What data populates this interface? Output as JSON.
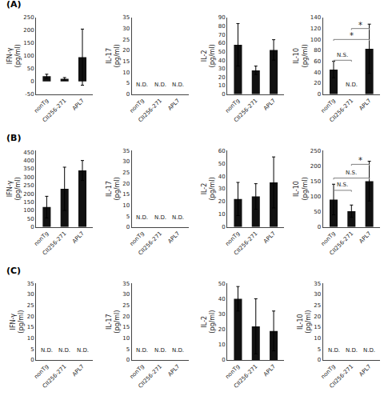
{
  "chart_data": [
    {
      "type": "bar",
      "title": "(A)",
      "ylabel": "IFN-γ\n(pg/ml)",
      "categories": [
        "nonTg",
        "CII256-271",
        "APL7"
      ],
      "values": [
        20,
        10,
        95
      ],
      "errors": [
        8,
        5,
        110
      ],
      "color": "#111111",
      "ylim": [
        -50,
        250
      ],
      "yticks": [
        -50,
        0,
        50,
        100,
        150,
        200,
        250
      ],
      "grid": false
    },
    {
      "type": "bar",
      "ylabel": "IL-17\n(pg/ml)",
      "categories": [
        "nonTg",
        "CII256-271",
        "APL7"
      ],
      "values": [
        null,
        null,
        null
      ],
      "errors": [
        null,
        null,
        null
      ],
      "color": "#111111",
      "ylim": [
        0,
        35
      ],
      "yticks": [
        0,
        5,
        10,
        15,
        20,
        25,
        30,
        35
      ],
      "grid": false,
      "annotations": [
        {
          "category": "nonTg",
          "text": "N.D."
        },
        {
          "category": "CII256-271",
          "text": "N.D."
        },
        {
          "category": "APL7",
          "text": "N.D."
        }
      ]
    },
    {
      "type": "bar",
      "ylabel": "IL-2\n(pg/ml)",
      "categories": [
        "nonTg",
        "CII256-271",
        "APL7"
      ],
      "values": [
        58,
        28,
        52
      ],
      "errors": [
        25,
        5,
        12
      ],
      "color": "#111111",
      "ylim": [
        0,
        90
      ],
      "yticks": [
        0,
        10,
        20,
        30,
        40,
        50,
        60,
        70,
        80,
        90
      ],
      "grid": false
    },
    {
      "type": "bar",
      "ylabel": "IL-10\n(pg/ml)",
      "categories": [
        "nonTg",
        "CII256-271",
        "APL7"
      ],
      "values": [
        45,
        null,
        83
      ],
      "errors": [
        15,
        null,
        45
      ],
      "color": "#111111",
      "ylim": [
        0,
        140
      ],
      "yticks": [
        0,
        20,
        40,
        60,
        80,
        100,
        120,
        140
      ],
      "grid": false,
      "annotations": [
        {
          "category": "CII256-271",
          "text": "N.D."
        }
      ],
      "significance": [
        {
          "from": "nonTg",
          "to": "CII256-271",
          "y": 62,
          "label": "N.S."
        },
        {
          "from": "nonTg",
          "to": "APL7",
          "y": 100,
          "label": "*"
        },
        {
          "from": "CII256-271",
          "to": "APL7",
          "y": 120,
          "label": "*"
        }
      ]
    },
    {
      "type": "bar",
      "title": "(B)",
      "ylabel": "IFN-γ\n(pg/ml)",
      "categories": [
        "nonTg",
        "CII256-271",
        "APL7"
      ],
      "values": [
        120,
        230,
        340
      ],
      "errors": [
        65,
        130,
        60
      ],
      "color": "#111111",
      "ylim": [
        0,
        460
      ],
      "yticks": [
        0,
        50,
        100,
        150,
        200,
        250,
        300,
        350,
        400,
        450
      ],
      "grid": false
    },
    {
      "type": "bar",
      "ylabel": "IL-17\n(pg/ml)",
      "categories": [
        "nonTg",
        "CII256-271",
        "APL7"
      ],
      "values": [
        null,
        null,
        null
      ],
      "errors": [
        null,
        null,
        null
      ],
      "color": "#111111",
      "ylim": [
        0,
        35
      ],
      "yticks": [
        0,
        5,
        10,
        15,
        20,
        25,
        30,
        35
      ],
      "grid": false,
      "annotations": [
        {
          "category": "nonTg",
          "text": "N.D."
        },
        {
          "category": "CII256-271",
          "text": "N.D."
        },
        {
          "category": "APL7",
          "text": "N.D."
        }
      ]
    },
    {
      "type": "bar",
      "ylabel": "IL-2\n(pg/ml)",
      "categories": [
        "nonTg",
        "CII256-271",
        "APL7"
      ],
      "values": [
        22,
        24,
        35
      ],
      "errors": [
        13,
        10,
        20
      ],
      "color": "#111111",
      "ylim": [
        0,
        60
      ],
      "yticks": [
        0,
        10,
        20,
        30,
        40,
        50,
        60
      ],
      "grid": false
    },
    {
      "type": "bar",
      "ylabel": "IL-10\n(pg/ml)",
      "categories": [
        "nonTg",
        "CII256-271",
        "APL7"
      ],
      "values": [
        90,
        52,
        150
      ],
      "errors": [
        50,
        20,
        65
      ],
      "color": "#111111",
      "ylim": [
        0,
        250
      ],
      "yticks": [
        0,
        50,
        100,
        150,
        200,
        250
      ],
      "grid": false,
      "significance": [
        {
          "from": "nonTg",
          "to": "CII256-271",
          "y": 120,
          "label": "N.S."
        },
        {
          "from": "nonTg",
          "to": "APL7",
          "y": 160,
          "label": "N.S."
        },
        {
          "from": "CII256-271",
          "to": "APL7",
          "y": 205,
          "label": "*"
        }
      ]
    },
    {
      "type": "bar",
      "title": "(C)",
      "ylabel": "IFN-γ\n(pg/ml)",
      "categories": [
        "nonTg",
        "CII256-271",
        "APL7"
      ],
      "values": [
        null,
        null,
        null
      ],
      "errors": [
        null,
        null,
        null
      ],
      "color": "#111111",
      "ylim": [
        0,
        35
      ],
      "yticks": [
        0,
        5,
        10,
        15,
        20,
        25,
        30,
        35
      ],
      "grid": false,
      "annotations": [
        {
          "category": "nonTg",
          "text": "N.D."
        },
        {
          "category": "CII256-271",
          "text": "N.D."
        },
        {
          "category": "APL7",
          "text": "N.D."
        }
      ]
    },
    {
      "type": "bar",
      "ylabel": "IL-17\n(pg/ml)",
      "categories": [
        "nonTg",
        "CII256-271",
        "APL7"
      ],
      "values": [
        null,
        null,
        null
      ],
      "errors": [
        null,
        null,
        null
      ],
      "color": "#111111",
      "ylim": [
        0,
        35
      ],
      "yticks": [
        0,
        5,
        10,
        15,
        20,
        25,
        30,
        35
      ],
      "grid": false,
      "annotations": [
        {
          "category": "nonTg",
          "text": "N.D."
        },
        {
          "category": "CII256-271",
          "text": "N.D."
        },
        {
          "category": "APL7",
          "text": "N.D."
        }
      ]
    },
    {
      "type": "bar",
      "ylabel": "IL-2\n(pg/ml)",
      "categories": [
        "nonTg",
        "CII256-271",
        "APL7"
      ],
      "values": [
        40,
        22,
        19
      ],
      "errors": [
        8,
        18,
        13
      ],
      "color": "#111111",
      "ylim": [
        0,
        50
      ],
      "yticks": [
        0,
        10,
        20,
        30,
        40,
        50
      ],
      "grid": false
    },
    {
      "type": "bar",
      "ylabel": "IL-10\n(pg/ml)",
      "categories": [
        "nonTg",
        "CII256-271",
        "APL7"
      ],
      "values": [
        null,
        null,
        null
      ],
      "errors": [
        null,
        null,
        null
      ],
      "color": "#111111",
      "ylim": [
        0,
        35
      ],
      "yticks": [
        0,
        5,
        10,
        15,
        20,
        25,
        30,
        35
      ],
      "grid": false,
      "annotations": [
        {
          "category": "nonTg",
          "text": "N.D."
        },
        {
          "category": "CII256-271",
          "text": "N.D."
        },
        {
          "category": "APL7",
          "text": "N.D."
        }
      ]
    }
  ]
}
